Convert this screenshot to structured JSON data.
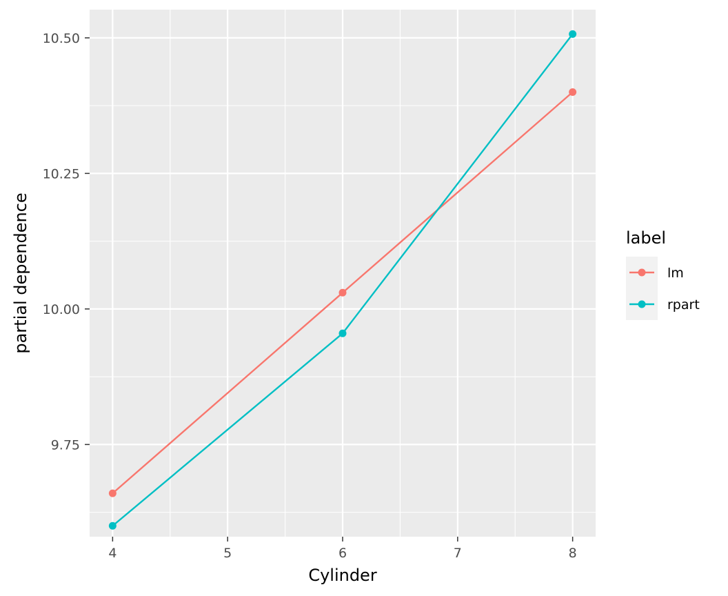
{
  "chart_data": {
    "type": "line",
    "title": "",
    "xlabel": "Cylinder",
    "ylabel": "partial dependence",
    "x": [
      4,
      6,
      8
    ],
    "xlim": [
      3.8,
      8.2
    ],
    "ylim": [
      9.58,
      10.552
    ],
    "x_ticks": [
      "4",
      "5",
      "6",
      "7",
      "8"
    ],
    "y_ticks": [
      "9.75",
      "10.00",
      "10.25",
      "10.50"
    ],
    "grid": true,
    "legend": {
      "title": "label",
      "position": "right",
      "entries": [
        "lm",
        "rpart"
      ]
    },
    "series": [
      {
        "name": "lm",
        "color": "#F8766D",
        "values": [
          9.66,
          10.03,
          10.4
        ]
      },
      {
        "name": "rpart",
        "color": "#00BFC4",
        "values": [
          9.6,
          9.955,
          10.507
        ]
      }
    ]
  }
}
